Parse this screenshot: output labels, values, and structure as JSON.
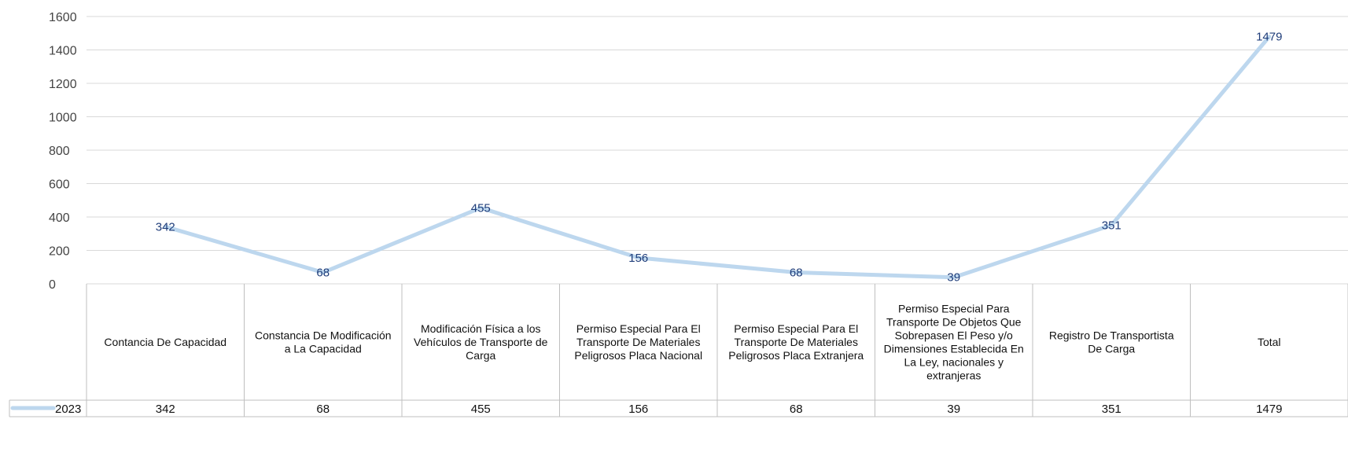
{
  "chart_data": {
    "type": "line",
    "categories": [
      [
        "Contancia De Capacidad"
      ],
      [
        "Constancia De Modificación",
        "a La Capacidad"
      ],
      [
        "Modificación Física a los",
        "Vehículos de Transporte de",
        "Carga"
      ],
      [
        "Permiso Especial Para El",
        "Transporte De Materiales",
        "Peligrosos Placa Nacional"
      ],
      [
        "Permiso Especial Para El",
        "Transporte De Materiales",
        "Peligrosos Placa Extranjera"
      ],
      [
        "Permiso Especial Para",
        "Transporte De Objetos Que",
        "Sobrepasen El Peso y/o",
        "Dimensiones Establecida En",
        "La Ley, nacionales y",
        "extranjeras"
      ],
      [
        "Registro De Transportista",
        "De Carga"
      ],
      [
        "Total"
      ]
    ],
    "series": [
      {
        "name": "2023",
        "values": [
          342,
          68,
          455,
          156,
          68,
          39,
          351,
          1479
        ]
      }
    ],
    "yticks": [
      0,
      200,
      400,
      600,
      800,
      1000,
      1200,
      1400,
      1600
    ],
    "ylim": [
      0,
      1600
    ],
    "grid": true,
    "data_table": true,
    "line_color": "#bdd7ee",
    "label_color": "#1f3d7a"
  }
}
